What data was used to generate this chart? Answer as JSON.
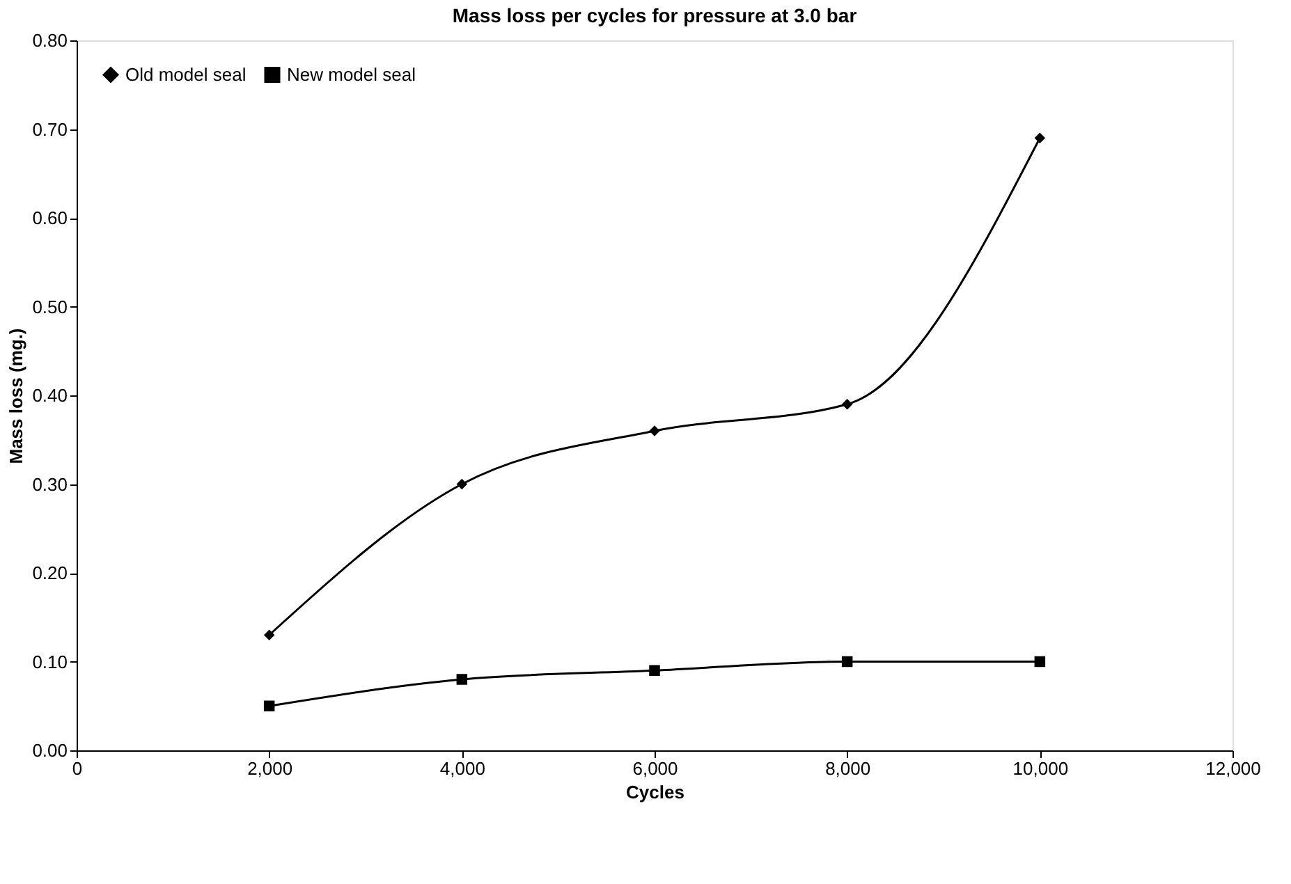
{
  "chart_data": {
    "type": "line",
    "title": "Mass loss per cycles for pressure at 3.0 bar",
    "xlabel": "Cycles",
    "ylabel": "Mass loss (mg.)",
    "x": [
      2000,
      4000,
      6000,
      8000,
      10000
    ],
    "series": [
      {
        "name": "Old model seal",
        "color": "#000000",
        "marker": "diamond",
        "values": [
          0.13,
          0.3,
          0.36,
          0.39,
          0.69
        ]
      },
      {
        "name": "New model seal",
        "color": "#000000",
        "marker": "square",
        "values": [
          0.05,
          0.08,
          0.09,
          0.1,
          0.1
        ]
      }
    ],
    "xlim": [
      0,
      12000
    ],
    "xticks": [
      0,
      {
        "value": 2000,
        "label": "2,000"
      },
      {
        "value": 4000,
        "label": "4,000"
      },
      {
        "value": 6000,
        "label": "6,000"
      },
      {
        "value": 8000,
        "label": "8,000"
      },
      {
        "value": 10000,
        "label": "10,000"
      },
      {
        "value": 12000,
        "label": "12,000"
      }
    ],
    "ylim": [
      0,
      0.8
    ],
    "yticks": [
      {
        "value": 0,
        "label": "0.00"
      },
      {
        "value": 0.1,
        "label": "0.10"
      },
      {
        "value": 0.2,
        "label": "0.20"
      },
      {
        "value": 0.3,
        "label": "0.30"
      },
      {
        "value": 0.4,
        "label": "0.40"
      },
      {
        "value": 0.5,
        "label": "0.50"
      },
      {
        "value": 0.6,
        "label": "0.60"
      },
      {
        "value": 0.7,
        "label": "0.70"
      },
      {
        "value": 0.8,
        "label": "0.80"
      }
    ],
    "grid": false,
    "legend": "top left",
    "line_style": "solid"
  }
}
